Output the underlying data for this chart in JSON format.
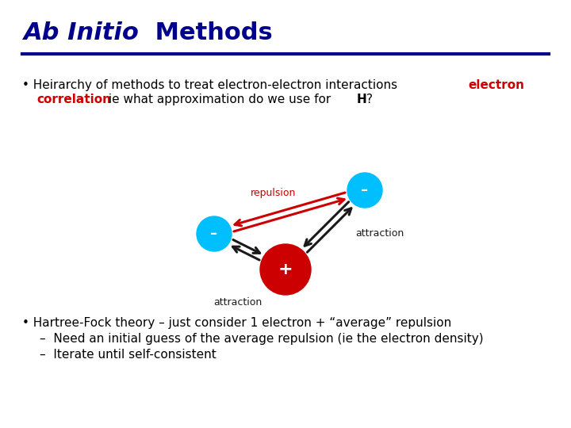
{
  "title_italic": "Ab Initio",
  "title_normal": " Methods",
  "title_color": "#00008B",
  "title_fontsize": 22,
  "divider_color": "#00008B",
  "bg_color": "#FFFFFF",
  "bullet1_color": "#000000",
  "bullet1_red_color": "#CC0000",
  "bullet1_fontsize": 11,
  "electron_color": "#00BFFF",
  "nucleus_color": "#CC0000",
  "repulsion_label": "repulsion",
  "repulsion_color": "#CC0000",
  "attraction_label": "attraction",
  "arrow_color_attraction": "#1a1a1a",
  "bullet2_fontsize": 11,
  "bullet2_color": "#000000",
  "e1x": 0.335,
  "e1y": 0.535,
  "e2x": 0.575,
  "e2y": 0.605,
  "nx": 0.445,
  "ny": 0.435,
  "er": 0.03,
  "nr": 0.042
}
